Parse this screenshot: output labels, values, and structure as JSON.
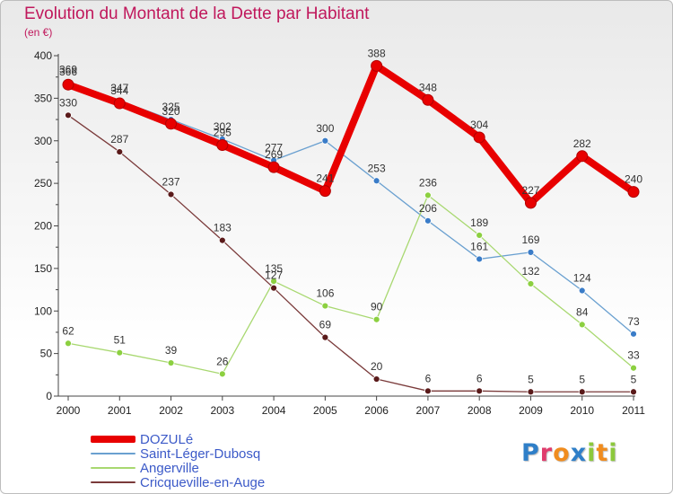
{
  "title": "Evolution du Montant de la Dette par Habitant",
  "subtitle": "(en €)",
  "logo": {
    "letters": [
      {
        "char": "P",
        "color": "#2f7fc8"
      },
      {
        "char": "r",
        "color": "#e03c6c"
      },
      {
        "char": "o",
        "color": "#f08c1e"
      },
      {
        "char": "x",
        "color": "#2f7fc8"
      },
      {
        "char": "i",
        "color": "#8cc83c"
      },
      {
        "char": "t",
        "color": "#f08c1e"
      },
      {
        "char": "i",
        "color": "#8cc83c"
      }
    ]
  },
  "chart_data": {
    "type": "line",
    "title": "Evolution du Montant de la Dette par Habitant",
    "subtitle": "(en €)",
    "xlabel": "",
    "ylabel": "",
    "x": [
      "2000",
      "2001",
      "2002",
      "2003",
      "2004",
      "2005",
      "2006",
      "2007",
      "2008",
      "2009",
      "2010",
      "2011"
    ],
    "ylim": [
      0,
      400
    ],
    "yticks": [
      "0",
      "50",
      "100",
      "150",
      "200",
      "250",
      "300",
      "350",
      "400"
    ],
    "grid": false,
    "legend_placement": "bottom-left",
    "series": [
      {
        "name": "DOZULé",
        "color": "#e80000",
        "marker_color": "#e80000",
        "weight": "bold",
        "values": [
          366,
          344,
          320,
          295,
          269,
          241,
          388,
          348,
          304,
          227,
          282,
          240
        ]
      },
      {
        "name": "Saint-Léger-Dubosq",
        "color": "#6aa0d0",
        "marker_color": "#3a7cc8",
        "weight": "thin",
        "values": [
          369,
          347,
          325,
          302,
          277,
          300,
          253,
          206,
          161,
          169,
          124,
          73
        ]
      },
      {
        "name": "Angerville",
        "color": "#a8d870",
        "marker_color": "#8cd040",
        "weight": "thin",
        "values": [
          62,
          51,
          39,
          26,
          135,
          106,
          90,
          236,
          189,
          132,
          84,
          33
        ]
      },
      {
        "name": "Cricqueville-en-Auge",
        "color": "#7a3a3a",
        "marker_color": "#5a1a1a",
        "weight": "thin",
        "values": [
          330,
          287,
          237,
          183,
          127,
          69,
          20,
          6,
          6,
          5,
          5,
          5
        ]
      }
    ]
  }
}
